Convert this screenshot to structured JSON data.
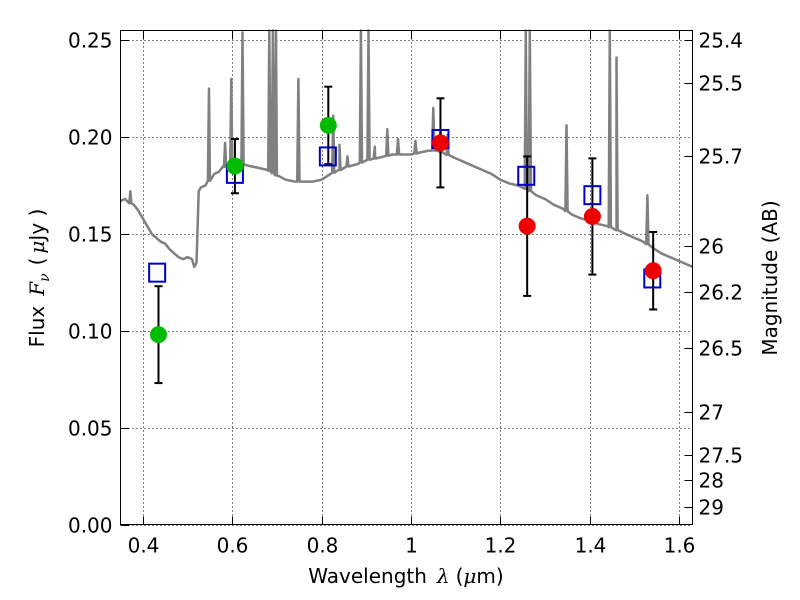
{
  "chart_data": {
    "type": "scatter",
    "title": "",
    "xlabel": {
      "prefix": "Wavelength",
      "symbol": "λ",
      "unit_open": "(",
      "unit_mu": "μ",
      "unit_rest": "m)"
    },
    "ylabel": {
      "prefix": "Flux",
      "symbol": "F",
      "subscript": "ν",
      "unit_open": "(",
      "unit_mu": "μ",
      "unit_rest": "Jy )"
    },
    "y2label": "Magnitude (AB)",
    "xlim": [
      0.35,
      1.63
    ],
    "ylim": [
      0.0,
      0.255
    ],
    "grid": true,
    "x_ticks": [
      {
        "value": 0.4,
        "label": "0.4"
      },
      {
        "value": 0.6,
        "label": "0.6"
      },
      {
        "value": 0.8,
        "label": "0.8"
      },
      {
        "value": 1.0,
        "label": "1"
      },
      {
        "value": 1.2,
        "label": "1.2"
      },
      {
        "value": 1.4,
        "label": "1.4"
      },
      {
        "value": 1.6,
        "label": "1.6"
      }
    ],
    "y_ticks": [
      {
        "value": 0.0,
        "label": "0.00"
      },
      {
        "value": 0.05,
        "label": "0.05"
      },
      {
        "value": 0.1,
        "label": "0.10"
      },
      {
        "value": 0.15,
        "label": "0.15"
      },
      {
        "value": 0.2,
        "label": "0.20"
      },
      {
        "value": 0.25,
        "label": "0.25"
      }
    ],
    "y2_ticks": [
      {
        "label": "25.4",
        "flux": 0.25
      },
      {
        "label": "25.5",
        "flux": 0.228
      },
      {
        "label": "25.7",
        "flux": 0.19
      },
      {
        "label": "26",
        "flux": 0.144
      },
      {
        "label": "26.2",
        "flux": 0.12
      },
      {
        "label": "26.5",
        "flux": 0.091
      },
      {
        "label": "27",
        "flux": 0.058
      },
      {
        "label": "27.5",
        "flux": 0.036
      },
      {
        "label": "28",
        "flux": 0.023
      },
      {
        "label": "29",
        "flux": 0.009
      }
    ],
    "series": [
      {
        "name": "model_photometry",
        "marker": "open-square",
        "color": "#0000cc",
        "points": [
          {
            "x": 0.432,
            "y": 0.13
          },
          {
            "x": 0.606,
            "y": 0.181
          },
          {
            "x": 0.814,
            "y": 0.19
          },
          {
            "x": 1.066,
            "y": 0.199
          },
          {
            "x": 1.258,
            "y": 0.18
          },
          {
            "x": 1.406,
            "y": 0.17
          },
          {
            "x": 1.54,
            "y": 0.127
          }
        ]
      },
      {
        "name": "optical_observed",
        "marker": "circle",
        "color": "#00bb00",
        "points": [
          {
            "x": 0.435,
            "y": 0.098,
            "err": 0.025
          },
          {
            "x": 0.606,
            "y": 0.185,
            "err": 0.014
          },
          {
            "x": 0.815,
            "y": 0.206,
            "err": 0.02
          }
        ]
      },
      {
        "name": "nir_observed",
        "marker": "circle",
        "color": "#ee0000",
        "points": [
          {
            "x": 1.066,
            "y": 0.197,
            "err": 0.023
          },
          {
            "x": 1.26,
            "y": 0.154,
            "err": 0.036
          },
          {
            "x": 1.406,
            "y": 0.159,
            "err": 0.03
          },
          {
            "x": 1.542,
            "y": 0.131,
            "err": 0.02
          }
        ]
      }
    ],
    "model_spectrum": {
      "name": "best_fit_sed",
      "color": "#808080",
      "continuum": [
        [
          0.35,
          0.167
        ],
        [
          0.36,
          0.168
        ],
        [
          0.37,
          0.166
        ],
        [
          0.38,
          0.165
        ],
        [
          0.39,
          0.162
        ],
        [
          0.4,
          0.158
        ],
        [
          0.41,
          0.154
        ],
        [
          0.42,
          0.15
        ],
        [
          0.43,
          0.148
        ],
        [
          0.44,
          0.146
        ],
        [
          0.45,
          0.145
        ],
        [
          0.46,
          0.142
        ],
        [
          0.47,
          0.14
        ],
        [
          0.48,
          0.138
        ],
        [
          0.49,
          0.137
        ],
        [
          0.5,
          0.138
        ],
        [
          0.51,
          0.137
        ],
        [
          0.515,
          0.133
        ],
        [
          0.52,
          0.135
        ],
        [
          0.525,
          0.172
        ],
        [
          0.53,
          0.174
        ],
        [
          0.54,
          0.175
        ],
        [
          0.55,
          0.178
        ],
        [
          0.56,
          0.181
        ],
        [
          0.57,
          0.182
        ],
        [
          0.58,
          0.185
        ],
        [
          0.59,
          0.184
        ],
        [
          0.6,
          0.185
        ],
        [
          0.62,
          0.186
        ],
        [
          0.64,
          0.185
        ],
        [
          0.66,
          0.184
        ],
        [
          0.68,
          0.183
        ],
        [
          0.7,
          0.18
        ],
        [
          0.72,
          0.178
        ],
        [
          0.74,
          0.177
        ],
        [
          0.76,
          0.177
        ],
        [
          0.78,
          0.177
        ],
        [
          0.8,
          0.178
        ],
        [
          0.82,
          0.181
        ],
        [
          0.84,
          0.183
        ],
        [
          0.86,
          0.185
        ],
        [
          0.88,
          0.186
        ],
        [
          0.9,
          0.188
        ],
        [
          0.92,
          0.189
        ],
        [
          0.94,
          0.19
        ],
        [
          0.96,
          0.191
        ],
        [
          0.98,
          0.191
        ],
        [
          1.0,
          0.191
        ],
        [
          1.02,
          0.192
        ],
        [
          1.04,
          0.193
        ],
        [
          1.06,
          0.193
        ],
        [
          1.08,
          0.191
        ],
        [
          1.1,
          0.189
        ],
        [
          1.12,
          0.187
        ],
        [
          1.14,
          0.185
        ],
        [
          1.16,
          0.183
        ],
        [
          1.18,
          0.181
        ],
        [
          1.2,
          0.178
        ],
        [
          1.22,
          0.176
        ],
        [
          1.24,
          0.175
        ],
        [
          1.26,
          0.173
        ],
        [
          1.28,
          0.17
        ],
        [
          1.3,
          0.168
        ],
        [
          1.32,
          0.165
        ],
        [
          1.34,
          0.163
        ],
        [
          1.36,
          0.16
        ],
        [
          1.38,
          0.158
        ],
        [
          1.4,
          0.157
        ],
        [
          1.42,
          0.155
        ],
        [
          1.44,
          0.154
        ],
        [
          1.46,
          0.152
        ],
        [
          1.48,
          0.15
        ],
        [
          1.5,
          0.148
        ],
        [
          1.52,
          0.146
        ],
        [
          1.54,
          0.143
        ],
        [
          1.56,
          0.14
        ],
        [
          1.58,
          0.138
        ],
        [
          1.6,
          0.136
        ],
        [
          1.62,
          0.134
        ],
        [
          1.63,
          0.133
        ]
      ],
      "emission_lines": [
        [
          0.372,
          0.172
        ],
        [
          0.548,
          0.225
        ],
        [
          0.584,
          0.197
        ],
        [
          0.598,
          0.23
        ],
        [
          0.623,
          0.254
        ],
        [
          0.683,
          0.255
        ],
        [
          0.691,
          0.255
        ],
        [
          0.698,
          0.255
        ],
        [
          0.748,
          0.23
        ],
        [
          0.826,
          0.211
        ],
        [
          0.84,
          0.196
        ],
        [
          0.858,
          0.19
        ],
        [
          0.888,
          0.255
        ],
        [
          0.905,
          0.255
        ],
        [
          0.919,
          0.195
        ],
        [
          0.947,
          0.204
        ],
        [
          0.971,
          0.199
        ],
        [
          1.01,
          0.198
        ],
        [
          1.05,
          0.215
        ],
        [
          1.066,
          0.204
        ],
        [
          1.082,
          0.201
        ],
        [
          1.257,
          0.255
        ],
        [
          1.266,
          0.255
        ],
        [
          1.348,
          0.206
        ],
        [
          1.445,
          0.255
        ],
        [
          1.46,
          0.241
        ],
        [
          1.529,
          0.17
        ]
      ]
    }
  }
}
